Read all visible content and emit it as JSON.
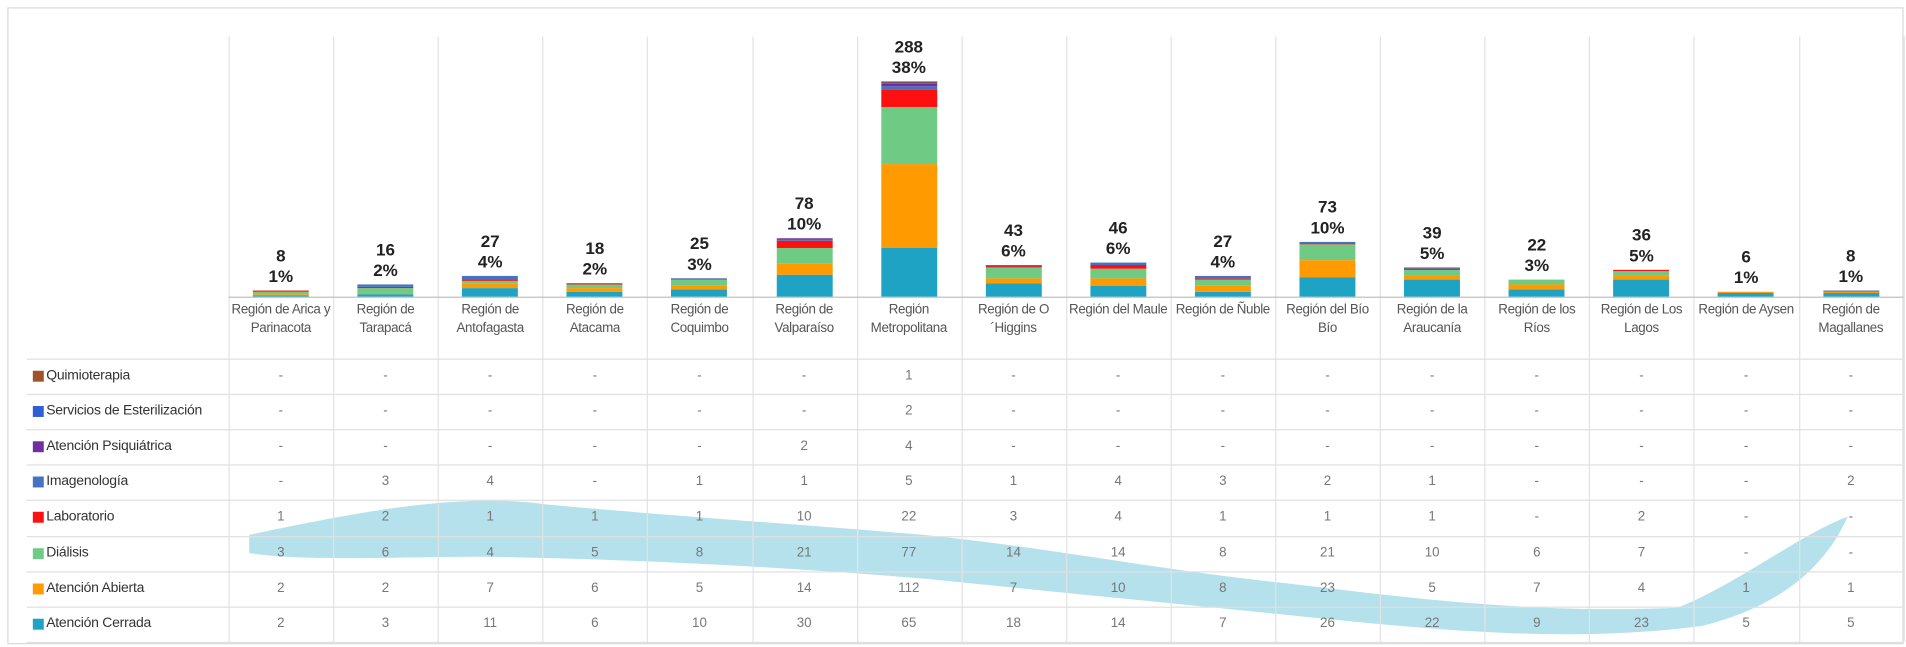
{
  "chart_data": {
    "type": "stacked_bar",
    "categories": [
      "Región de Arica y Parinacota",
      "Región de Tarapacá",
      "Región de Antofagasta",
      "Región de Atacama",
      "Región de Coquimbo",
      "Región de Valparaíso",
      "Región Metropolitana",
      "Región de O´Higgins",
      "Región del Maule",
      "Región de Ñuble",
      "Región del Bío Bío",
      "Región de la Araucanía",
      "Región de los Ríos",
      "Región de Los Lagos",
      "Región de Aysen",
      "Región de Magallanes"
    ],
    "totals": [
      8,
      16,
      27,
      18,
      25,
      78,
      288,
      43,
      46,
      27,
      73,
      39,
      22,
      36,
      6,
      8
    ],
    "share_labels": [
      "1%",
      "2%",
      "4%",
      "2%",
      "3%",
      "10%",
      "38%",
      "6%",
      "6%",
      "4%",
      "10%",
      "5%",
      "3%",
      "5%",
      "1%",
      "1%"
    ],
    "series": [
      {
        "name": "Atención Cerrada",
        "color": "#1fa3c4",
        "values": [
          2,
          3,
          11,
          6,
          10,
          30,
          65,
          18,
          14,
          7,
          26,
          22,
          9,
          23,
          5,
          5
        ]
      },
      {
        "name": "Atención Abierta",
        "color": "#ff9b00",
        "values": [
          2,
          2,
          7,
          6,
          5,
          14,
          112,
          7,
          10,
          8,
          23,
          5,
          7,
          4,
          1,
          1
        ]
      },
      {
        "name": "Diálisis",
        "color": "#6fcb83",
        "values": [
          3,
          6,
          4,
          5,
          8,
          21,
          77,
          14,
          14,
          8,
          21,
          10,
          6,
          7,
          null,
          null
        ],
        "value_labels": [
          "3",
          "6",
          "4",
          "5",
          "8",
          "21",
          "77",
          "14",
          "14",
          "8",
          "21",
          "10",
          "6",
          "7",
          "-",
          "-"
        ]
      },
      {
        "name": "Laboratorio",
        "color": "#ff1010",
        "values": [
          1,
          2,
          1,
          1,
          1,
          10,
          22,
          3,
          4,
          1,
          1,
          1,
          null,
          2,
          null,
          null
        ],
        "value_labels": [
          "1",
          "2",
          "1",
          "1",
          "1",
          "10",
          "22",
          "3",
          "4",
          "1",
          "1",
          "1",
          "-",
          "2",
          "-",
          "-"
        ]
      },
      {
        "name": "Imagenología",
        "color": "#4472c4",
        "values": [
          null,
          3,
          4,
          null,
          1,
          1,
          5,
          1,
          4,
          3,
          2,
          1,
          null,
          null,
          null,
          2
        ],
        "value_labels": [
          "-",
          "3",
          "4",
          "-",
          "1",
          "1",
          "5",
          "1",
          "4",
          "3",
          "2",
          "1",
          "-",
          "-",
          "-",
          "2"
        ]
      },
      {
        "name": "Atención Psiquiátrica",
        "color": "#7030a0",
        "values": [
          null,
          null,
          null,
          null,
          null,
          2,
          4,
          null,
          null,
          null,
          null,
          null,
          null,
          null,
          null,
          null
        ],
        "value_labels": [
          "-",
          "-",
          "-",
          "-",
          "-",
          "2",
          "4",
          "-",
          "-",
          "-",
          "-",
          "-",
          "-",
          "-",
          "-",
          "-"
        ]
      },
      {
        "name": "Servicios de Esterilización",
        "color": "#2e5fd6",
        "values": [
          null,
          null,
          null,
          null,
          null,
          null,
          2,
          null,
          null,
          null,
          null,
          null,
          null,
          null,
          null,
          null
        ],
        "value_labels": [
          "-",
          "-",
          "-",
          "-",
          "-",
          "-",
          "2",
          "-",
          "-",
          "-",
          "-",
          "-",
          "-",
          "-",
          "-",
          "-"
        ]
      },
      {
        "name": "Quimioterapia",
        "color": "#a0522d",
        "values": [
          null,
          null,
          null,
          null,
          null,
          null,
          1,
          null,
          null,
          null,
          null,
          null,
          null,
          null,
          null,
          null
        ],
        "value_labels": [
          "-",
          "-",
          "-",
          "-",
          "-",
          "-",
          "1",
          "-",
          "-",
          "-",
          "-",
          "-",
          "-",
          "-",
          "-",
          "-"
        ]
      }
    ]
  }
}
